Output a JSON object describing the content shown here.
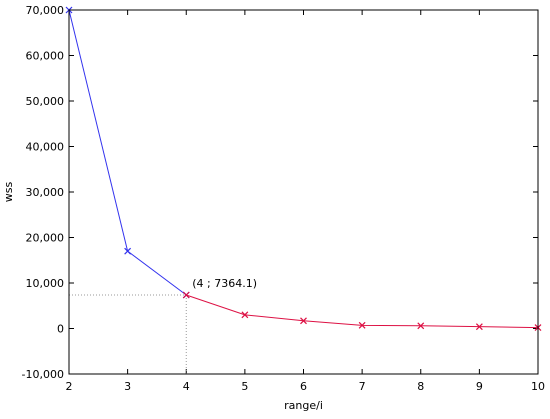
{
  "chart_data": {
    "type": "line",
    "title": "",
    "xlabel": "range/i",
    "ylabel": "wss",
    "xlim": [
      2,
      10
    ],
    "ylim": [
      -10000,
      70000
    ],
    "x_ticks": [
      2,
      3,
      4,
      5,
      6,
      7,
      8,
      9,
      10
    ],
    "x_tick_labels": [
      "2",
      "3",
      "4",
      "5",
      "6",
      "7",
      "8",
      "9",
      "10"
    ],
    "y_ticks": [
      -10000,
      0,
      10000,
      20000,
      30000,
      40000,
      50000,
      60000,
      70000
    ],
    "y_tick_labels": [
      "-10,000",
      "0",
      "10,000",
      "20,000",
      "30,000",
      "40,000",
      "50,000",
      "60,000",
      "70,000"
    ],
    "grid": false,
    "series": [
      {
        "color": "#3333ee",
        "x": [
          2,
          3,
          4
        ],
        "values": [
          70000,
          17000,
          7364.1
        ]
      },
      {
        "color": "#dd1144",
        "x": [
          4,
          5,
          6,
          7,
          8,
          9,
          10
        ],
        "values": [
          7364.1,
          3000,
          1700,
          700,
          600,
          400,
          200
        ]
      }
    ],
    "annotation": {
      "x": 4,
      "y": 7364.1,
      "label": "(4 ; 7364.1)",
      "guide_color": "#999999"
    }
  }
}
